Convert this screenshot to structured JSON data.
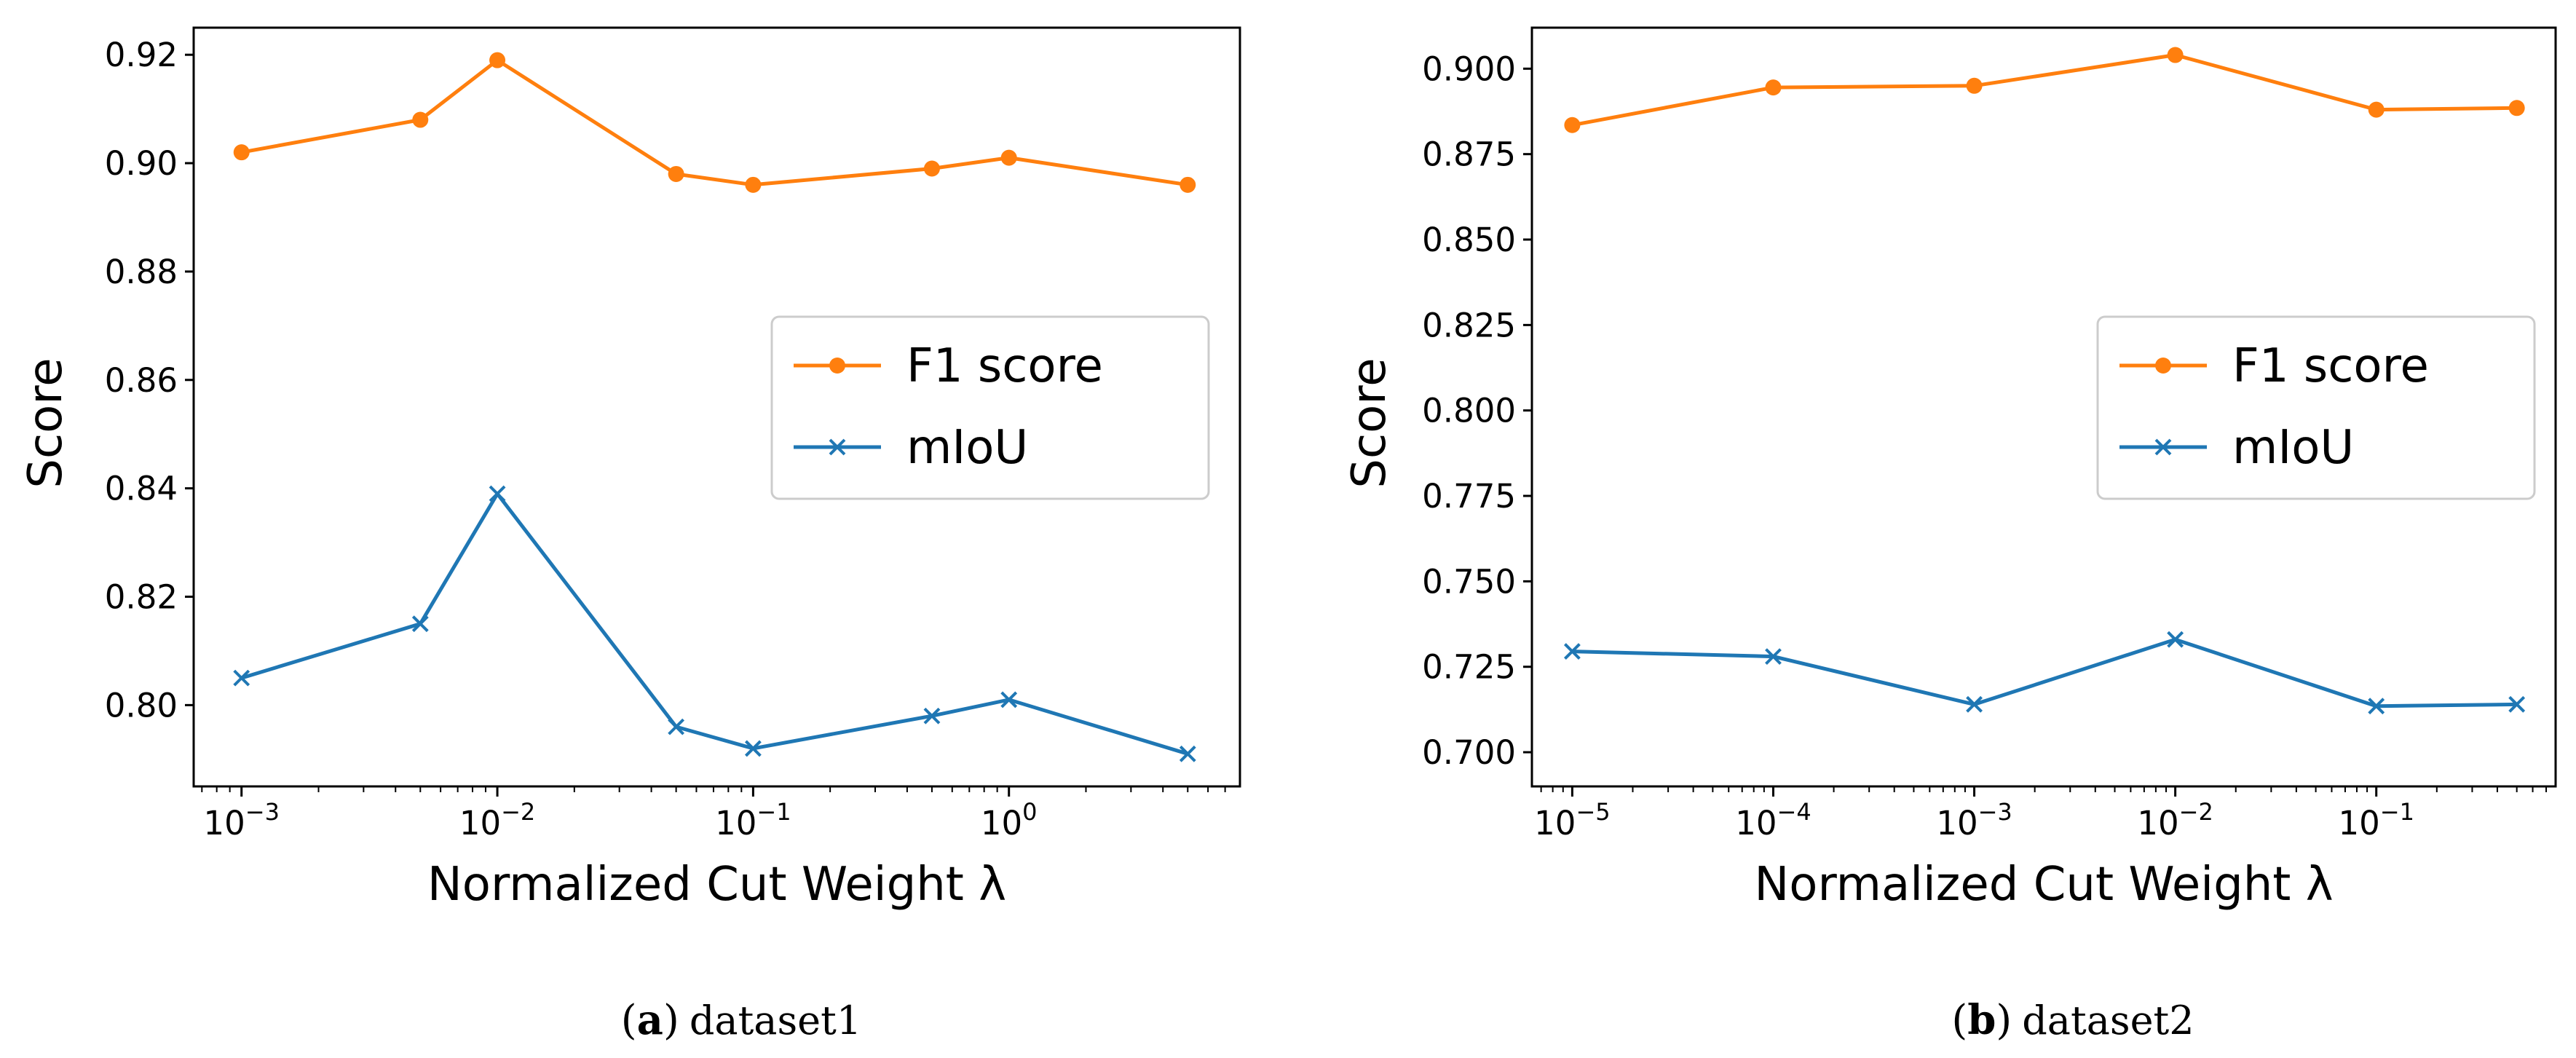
{
  "chart_data": [
    {
      "type": "line",
      "caption_letter": "a",
      "caption_text": "dataset1",
      "xlabel": "Normalized Cut Weight λ",
      "ylabel": "Score",
      "xscale": "log",
      "xlim": [
        0.00065,
        8.0
      ],
      "ylim": [
        0.785,
        0.925
      ],
      "x_tick_values": [
        0.001,
        0.01,
        0.1,
        1
      ],
      "x_tick_labels": [
        {
          "base": "10",
          "exp": "−3"
        },
        {
          "base": "10",
          "exp": "−2"
        },
        {
          "base": "10",
          "exp": "−1"
        },
        {
          "base": "10",
          "exp": "0"
        }
      ],
      "y_ticks": [
        "0.92",
        "0.90",
        "0.88",
        "0.86",
        "0.84",
        "0.82",
        "0.80"
      ],
      "y_tick_values": [
        0.92,
        0.9,
        0.88,
        0.86,
        0.84,
        0.82,
        0.8
      ],
      "legend_position": "center-right",
      "grid": false,
      "series": [
        {
          "name": "F1 score",
          "color": "#ff7f0e",
          "marker": "circle",
          "x": [
            0.001,
            0.005,
            0.01,
            0.05,
            0.1,
            0.5,
            1,
            5
          ],
          "y": [
            0.902,
            0.908,
            0.919,
            0.898,
            0.896,
            0.899,
            0.901,
            0.896
          ]
        },
        {
          "name": "mIoU",
          "color": "#1f77b4",
          "marker": "x",
          "x": [
            0.001,
            0.005,
            0.01,
            0.05,
            0.1,
            0.5,
            1,
            5
          ],
          "y": [
            0.805,
            0.815,
            0.839,
            0.796,
            0.792,
            0.798,
            0.801,
            0.791
          ]
        }
      ]
    },
    {
      "type": "line",
      "caption_letter": "b",
      "caption_text": "dataset2",
      "xlabel": "Normalized Cut Weight λ",
      "ylabel": "Score",
      "xscale": "log",
      "xlim": [
        6.3e-06,
        0.78
      ],
      "ylim": [
        0.69,
        0.912
      ],
      "x_tick_values": [
        1e-05,
        0.0001,
        0.001,
        0.01,
        0.1
      ],
      "x_tick_labels": [
        {
          "base": "10",
          "exp": "−5"
        },
        {
          "base": "10",
          "exp": "−4"
        },
        {
          "base": "10",
          "exp": "−3"
        },
        {
          "base": "10",
          "exp": "−2"
        },
        {
          "base": "10",
          "exp": "−1"
        }
      ],
      "y_ticks": [
        "0.900",
        "0.875",
        "0.850",
        "0.825",
        "0.800",
        "0.775",
        "0.750",
        "0.725",
        "0.700"
      ],
      "y_tick_values": [
        0.9,
        0.875,
        0.85,
        0.825,
        0.8,
        0.775,
        0.75,
        0.725,
        0.7
      ],
      "legend_position": "center-right",
      "grid": false,
      "series": [
        {
          "name": "F1 score",
          "color": "#ff7f0e",
          "marker": "circle",
          "x": [
            1e-05,
            0.0001,
            0.001,
            0.01,
            0.1,
            0.5
          ],
          "y": [
            0.8835,
            0.8945,
            0.895,
            0.904,
            0.888,
            0.8885
          ]
        },
        {
          "name": "mIoU",
          "color": "#1f77b4",
          "marker": "x",
          "x": [
            1e-05,
            0.0001,
            0.001,
            0.01,
            0.1,
            0.5
          ],
          "y": [
            0.7295,
            0.728,
            0.714,
            0.733,
            0.7135,
            0.714
          ]
        }
      ]
    }
  ]
}
